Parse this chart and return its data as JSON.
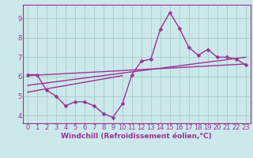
{
  "bg_color": "#cce8ea",
  "grid_color": "#aacccc",
  "line_color": "#993399",
  "marker": "D",
  "marker_size": 2.5,
  "line_width": 1.0,
  "xlabel": "Windchill (Refroidissement éolien,°C)",
  "xlabel_fontsize": 6.5,
  "tick_fontsize": 6.0,
  "yticks": [
    4,
    5,
    6,
    7,
    8,
    9
  ],
  "xticks": [
    0,
    1,
    2,
    3,
    4,
    5,
    6,
    7,
    8,
    9,
    10,
    11,
    12,
    13,
    14,
    15,
    16,
    17,
    18,
    19,
    20,
    21,
    22,
    23
  ],
  "ylim": [
    3.6,
    9.7
  ],
  "xlim": [
    -0.5,
    23.5
  ],
  "series0": {
    "x": [
      0,
      1,
      2,
      3,
      4,
      5,
      6,
      7,
      8,
      9,
      10,
      11,
      12,
      13,
      14,
      15,
      16,
      17,
      18,
      19,
      20,
      21,
      22,
      23
    ],
    "y": [
      6.1,
      6.1,
      5.3,
      5.0,
      4.5,
      4.7,
      4.7,
      4.5,
      4.1,
      3.9,
      4.6,
      6.1,
      6.8,
      6.9,
      8.45,
      9.3,
      8.5,
      7.5,
      7.1,
      7.4,
      7.0,
      7.0,
      6.9,
      6.6
    ]
  },
  "trend_lines": [
    {
      "x0": 0,
      "x1": 23,
      "y0": 6.05,
      "y1": 6.65
    },
    {
      "x0": 0,
      "x1": 23,
      "y0": 5.55,
      "y1": 7.0
    },
    {
      "x0": 0,
      "x1": 10,
      "y0": 5.2,
      "y1": 6.05
    }
  ]
}
